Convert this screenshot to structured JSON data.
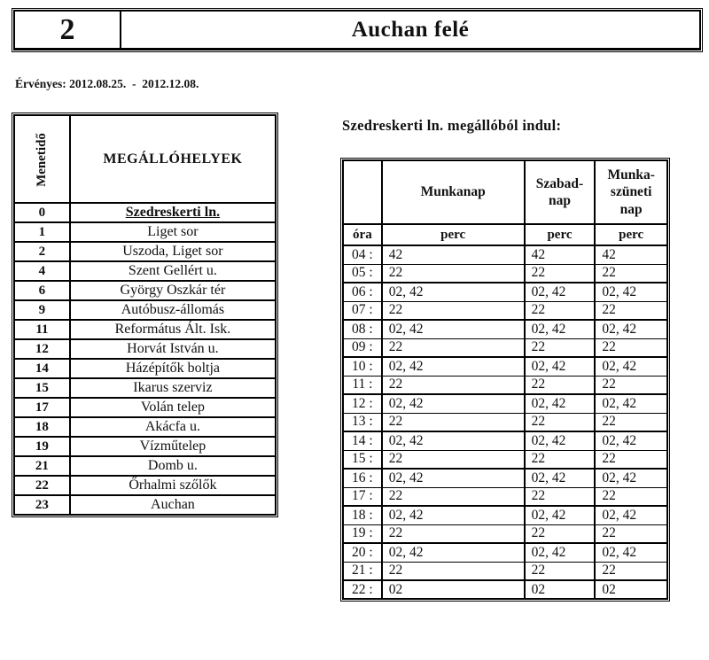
{
  "header": {
    "route_number": "2",
    "direction": "Auchan felé"
  },
  "validity": "Érvényes: 2012.08.25.  -  2012.12.08.",
  "colors": {
    "ink": "#111111",
    "border": "#000000",
    "background": "#ffffff"
  },
  "stops_table": {
    "travel_time_header": "Menetidő",
    "stops_header": "MEGÁLLÓHELYEK",
    "rows": [
      {
        "time": "0",
        "name": "Szedreskerti ln.",
        "emphasis": true
      },
      {
        "time": "1",
        "name": "Liget sor"
      },
      {
        "time": "2",
        "name": "Uszoda, Liget sor"
      },
      {
        "time": "4",
        "name": "Szent Gellért u."
      },
      {
        "time": "6",
        "name": "György Oszkár tér"
      },
      {
        "time": "9",
        "name": "Autóbusz-állomás"
      },
      {
        "time": "11",
        "name": "Református Ált. Isk."
      },
      {
        "time": "12",
        "name": "Horvát István u."
      },
      {
        "time": "14",
        "name": "Házépítők boltja"
      },
      {
        "time": "15",
        "name": "Ikarus szerviz"
      },
      {
        "time": "17",
        "name": "Volán telep"
      },
      {
        "time": "18",
        "name": "Akácfa u."
      },
      {
        "time": "19",
        "name": "Vízműtelep"
      },
      {
        "time": "21",
        "name": "Domb u."
      },
      {
        "time": "22",
        "name": "Őrhalmi szőlők"
      },
      {
        "time": "23",
        "name": "Auchan"
      }
    ]
  },
  "departures": {
    "title": "Szedreskerti ln. megállóból indul:",
    "col_hour": "óra",
    "col_minute": "perc",
    "col_workday": "Munkanap",
    "col_saturday": "Szabad-\nnap",
    "col_holiday": "Munka-\nszüneti\nnap",
    "rows": [
      {
        "hour": "04 :",
        "workday": "42",
        "saturday": "42",
        "holiday": "42"
      },
      {
        "hour": "05 :",
        "workday": "22",
        "saturday": "22",
        "holiday": "22"
      },
      {
        "hour": "06 :",
        "workday": "02, 42",
        "saturday": "02, 42",
        "holiday": "02, 42"
      },
      {
        "hour": "07 :",
        "workday": "22",
        "saturday": "22",
        "holiday": "22"
      },
      {
        "hour": "08 :",
        "workday": "02, 42",
        "saturday": "02, 42",
        "holiday": "02, 42"
      },
      {
        "hour": "09 :",
        "workday": "22",
        "saturday": "22",
        "holiday": "22"
      },
      {
        "hour": "10 :",
        "workday": "02, 42",
        "saturday": "02, 42",
        "holiday": "02, 42"
      },
      {
        "hour": "11 :",
        "workday": "22",
        "saturday": "22",
        "holiday": "22"
      },
      {
        "hour": "12 :",
        "workday": "02, 42",
        "saturday": "02, 42",
        "holiday": "02, 42"
      },
      {
        "hour": "13 :",
        "workday": "22",
        "saturday": "22",
        "holiday": "22"
      },
      {
        "hour": "14 :",
        "workday": "02, 42",
        "saturday": "02, 42",
        "holiday": "02, 42"
      },
      {
        "hour": "15 :",
        "workday": "22",
        "saturday": "22",
        "holiday": "22"
      },
      {
        "hour": "16 :",
        "workday": "02, 42",
        "saturday": "02, 42",
        "holiday": "02, 42"
      },
      {
        "hour": "17 :",
        "workday": "22",
        "saturday": "22",
        "holiday": "22"
      },
      {
        "hour": "18 :",
        "workday": "02, 42",
        "saturday": "02, 42",
        "holiday": "02, 42"
      },
      {
        "hour": "19 :",
        "workday": "22",
        "saturday": "22",
        "holiday": "22"
      },
      {
        "hour": "20 :",
        "workday": "02, 42",
        "saturday": "02, 42",
        "holiday": "02, 42"
      },
      {
        "hour": "21 :",
        "workday": "22",
        "saturday": "22",
        "holiday": "22"
      },
      {
        "hour": "22 :",
        "workday": "02",
        "saturday": "02",
        "holiday": "02"
      }
    ]
  }
}
